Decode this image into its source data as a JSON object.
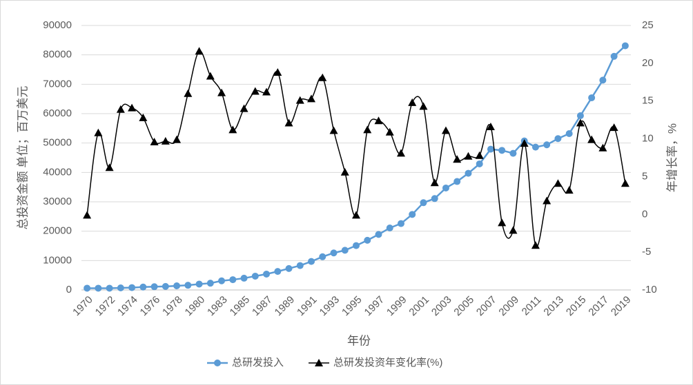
{
  "chart_data": {
    "type": "line",
    "x_label": "年份",
    "y_label": "总投资金额 单位；百万美元",
    "y2_label": "年增长率，%",
    "categories": [
      "1970",
      null,
      "1972",
      null,
      "1974",
      null,
      "1976",
      null,
      "1978",
      null,
      "1980",
      null,
      "1983",
      null,
      "1985",
      null,
      "1987",
      null,
      "1989",
      null,
      "1991",
      null,
      "1993",
      null,
      "1995",
      null,
      "1997",
      null,
      "1999",
      null,
      "2001",
      null,
      "2003",
      null,
      "2005",
      null,
      "2007",
      null,
      "2009",
      null,
      "2011",
      null,
      "2013",
      null,
      "2015",
      null,
      "2017",
      null,
      "2019"
    ],
    "series": [
      {
        "name": "总研发投入",
        "color": "#5b9bd5",
        "marker": "circle",
        "smooth": false,
        "values": [
          600,
          600,
          600,
          700,
          800,
          1000,
          1100,
          1200,
          1400,
          1600,
          2000,
          2300,
          3100,
          3500,
          4000,
          4700,
          5400,
          6300,
          7300,
          8300,
          9700,
          11300,
          12600,
          13500,
          15100,
          16900,
          18900,
          21100,
          22600,
          25700,
          29700,
          31100,
          34700,
          36900,
          39700,
          42900,
          47900,
          47500,
          46500,
          50700,
          48600,
          49400,
          51500,
          53200,
          59300,
          65400,
          71400,
          79500,
          83100
        ]
      },
      {
        "name": "总研发投资年变化率(%)",
        "color": "#000000",
        "marker": "triangle",
        "smooth": true,
        "axis": "y2",
        "values": [
          -0.1,
          10.8,
          6.2,
          13.9,
          14.1,
          12.8,
          9.6,
          9.7,
          9.9,
          16,
          21.6,
          18.3,
          16.1,
          11.2,
          14,
          16.3,
          16.2,
          18.8,
          12.1,
          15.1,
          15.3,
          18.1,
          11.1,
          5.6,
          -0.1,
          11.2,
          12.4,
          10.9,
          8.1,
          14.8,
          14.3,
          4.2,
          11.1,
          7.3,
          7.7,
          7.8,
          11.6,
          -1.1,
          -2.1,
          9.4,
          -4.1,
          1.8,
          4.1,
          3.2,
          12.1,
          9.9,
          8.8,
          11.5,
          4.1
        ]
      }
    ],
    "ylim": [
      0,
      90000
    ],
    "yticks": [
      0,
      10000,
      20000,
      30000,
      40000,
      50000,
      60000,
      70000,
      80000,
      90000
    ],
    "y2lim": [
      -10,
      25
    ],
    "y2ticks": [
      -10,
      -5,
      0,
      5,
      10,
      15,
      20,
      25
    ],
    "grid": true,
    "legend": "bottom"
  }
}
